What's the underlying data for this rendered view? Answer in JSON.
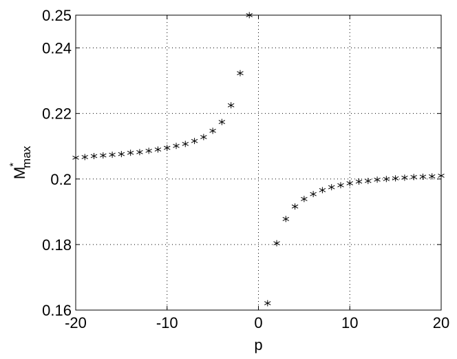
{
  "chart_data": {
    "type": "scatter",
    "xlabel": "p",
    "ylabel": {
      "base": "M",
      "sup": "*",
      "sub": "max"
    },
    "x": [
      -20,
      -19,
      -18,
      -17,
      -16,
      -15,
      -14,
      -13,
      -12,
      -11,
      -10,
      -9,
      -8,
      -7,
      -6,
      -5,
      -4,
      -3,
      -2,
      -1,
      1,
      2,
      3,
      4,
      5,
      6,
      7,
      8,
      9,
      10,
      11,
      12,
      13,
      14,
      15,
      16,
      17,
      18,
      19,
      20
    ],
    "values": [
      0.2065,
      0.2067,
      0.207,
      0.2072,
      0.2074,
      0.2076,
      0.208,
      0.2082,
      0.2086,
      0.209,
      0.2095,
      0.2101,
      0.2107,
      0.2116,
      0.2128,
      0.2147,
      0.2174,
      0.2225,
      0.2323,
      0.25,
      0.1621,
      0.1804,
      0.1878,
      0.1916,
      0.1939,
      0.1954,
      0.1966,
      0.1975,
      0.1981,
      0.1987,
      0.1992,
      0.1994,
      0.1998,
      0.2,
      0.2002,
      0.2004,
      0.2006,
      0.2007,
      0.2008,
      0.201
    ],
    "color": "#000000",
    "xlim": [
      -20,
      20
    ],
    "xticks": [
      -20,
      -10,
      0,
      10,
      20
    ],
    "ylim": [
      0.16,
      0.25
    ],
    "yticks": [
      0.16,
      0.18,
      0.2,
      0.22,
      0.24,
      0.25
    ],
    "grid": true
  }
}
